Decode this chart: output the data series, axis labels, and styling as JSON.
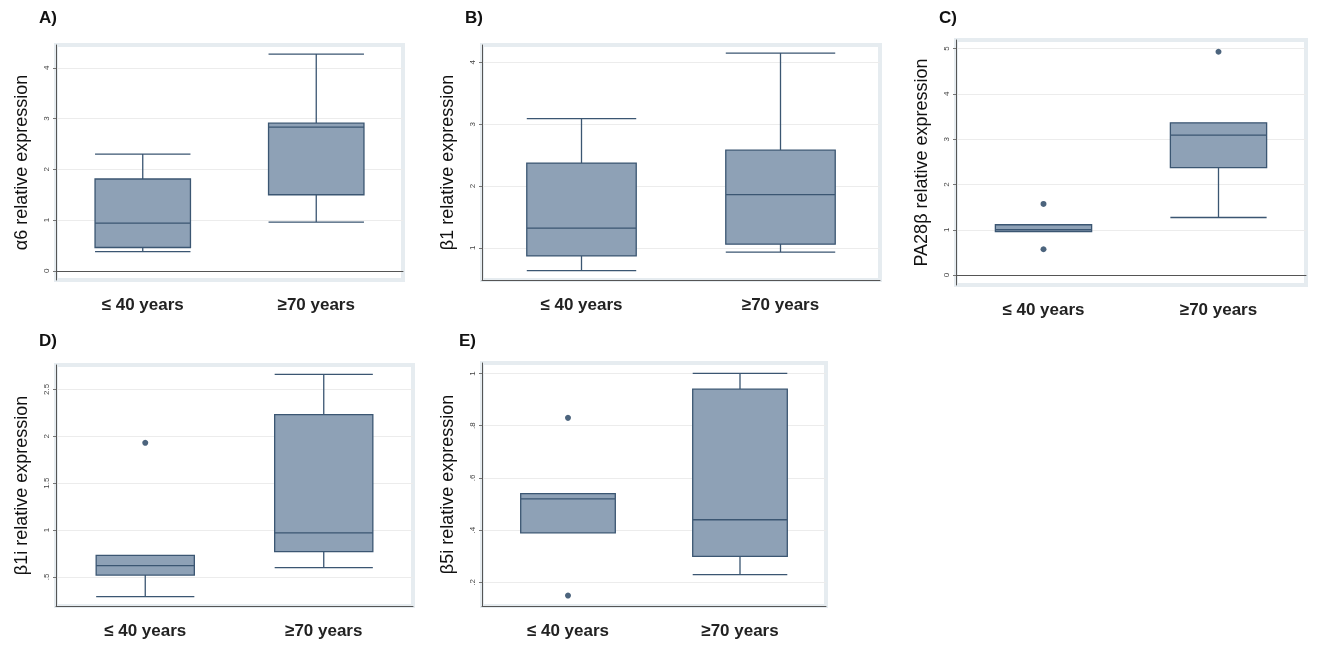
{
  "chart_data": [
    {
      "type": "box",
      "title": "A)",
      "ylabel": "α6 relative expression",
      "categories": [
        "≤ 40 years",
        "≥70 years"
      ],
      "ylim": [
        -0.18,
        4.45
      ],
      "yticks": [
        0,
        1,
        2,
        3,
        4
      ],
      "grid": "y",
      "series": [
        {
          "color": "#8ea1b6",
          "boxes": [
            {
              "low": 0.38,
              "q1": 0.46,
              "median": 0.94,
              "q3": 1.81,
              "high": 2.3
            },
            {
              "low": 0.96,
              "q1": 1.5,
              "median": 2.83,
              "q3": 2.91,
              "high": 4.27
            }
          ]
        }
      ]
    },
    {
      "type": "box",
      "title": "B)",
      "ylabel": "β1 relative expression",
      "categories": [
        "≤ 40 years",
        "≥70 years"
      ],
      "ylim": [
        0.48,
        4.28
      ],
      "yticks": [
        1,
        2,
        3,
        4
      ],
      "grid": "y",
      "series": [
        {
          "color": "#8ea1b6",
          "boxes": [
            {
              "low": 0.63,
              "q1": 0.87,
              "median": 1.32,
              "q3": 2.37,
              "high": 3.09
            },
            {
              "low": 0.93,
              "q1": 1.06,
              "median": 1.86,
              "q3": 2.58,
              "high": 4.15
            }
          ]
        }
      ]
    },
    {
      "type": "box",
      "title": "C)",
      "ylabel": "PA28β relative expression",
      "categories": [
        "≤ 40 years",
        "≥70 years"
      ],
      "ylim": [
        -0.22,
        5.19
      ],
      "yticks": [
        0,
        1,
        2,
        3,
        4,
        5
      ],
      "grid": "y",
      "series": [
        {
          "color": "#8ea1b6",
          "boxes": [
            {
              "low": 0.96,
              "q1": 0.96,
              "median": 1.0,
              "q3": 1.11,
              "high": 1.11,
              "outliers": [
                1.57,
                0.57
              ]
            },
            {
              "low": 1.27,
              "q1": 2.37,
              "median": 3.09,
              "q3": 3.36,
              "high": 3.36,
              "outliers": [
                4.93
              ]
            }
          ]
        }
      ]
    },
    {
      "type": "box",
      "title": "D)",
      "ylabel": "β1i relative expression",
      "categories": [
        "≤ 40 years",
        "≥70 years"
      ],
      "ylim": [
        0.19,
        2.76
      ],
      "yticks": [
        {
          "value": 0.5,
          "label": ".5"
        },
        1,
        1.5,
        2,
        2.5
      ],
      "grid": "y",
      "series": [
        {
          "color": "#8ea1b6",
          "boxes": [
            {
              "low": 0.29,
              "q1": 0.52,
              "median": 0.62,
              "q3": 0.73,
              "high": 0.73,
              "outliers": [
                1.93
              ]
            },
            {
              "low": 0.6,
              "q1": 0.77,
              "median": 0.97,
              "q3": 2.23,
              "high": 2.66
            }
          ]
        }
      ]
    },
    {
      "type": "box",
      "title": "E)",
      "ylabel": "β5i relative expression",
      "categories": [
        "≤ 40 years",
        "≥70 years"
      ],
      "ylim": [
        0.11,
        1.04
      ],
      "yticks": [
        {
          "value": 0.2,
          "label": ".2"
        },
        {
          "value": 0.4,
          "label": ".4"
        },
        {
          "value": 0.6,
          "label": ".6"
        },
        {
          "value": 0.8,
          "label": ".8"
        },
        1
      ],
      "grid": "y",
      "series": [
        {
          "color": "#8ea1b6",
          "boxes": [
            {
              "low": 0.39,
              "q1": 0.39,
              "median": 0.52,
              "q3": 0.54,
              "high": 0.54,
              "outliers": [
                0.83,
                0.15
              ]
            },
            {
              "low": 0.23,
              "q1": 0.3,
              "median": 0.44,
              "q3": 0.94,
              "high": 1.0
            }
          ]
        }
      ]
    }
  ]
}
